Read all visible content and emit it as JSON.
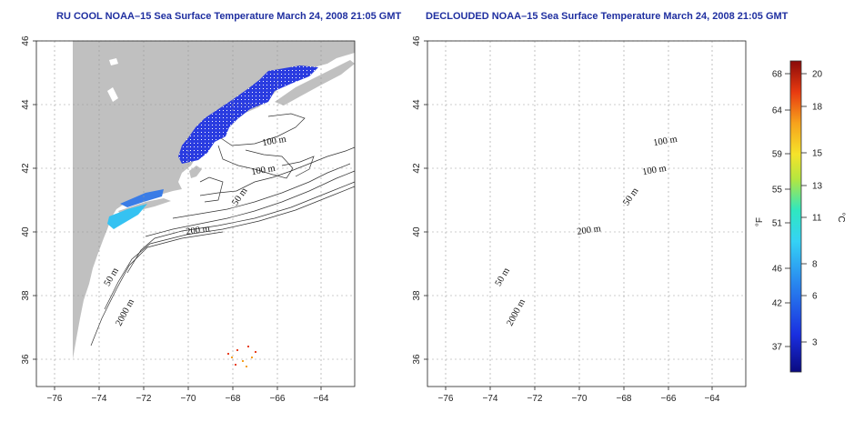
{
  "titles": {
    "left": "RU COOL NOAA–15 Sea Surface Temperature March 24, 2008 21:05 GMT",
    "right": "DECLOUDED NOAA–15 Sea Surface Temperature March 24, 2008 21:05 GMT"
  },
  "maps": [
    {
      "id": "ru-cool",
      "lon_ticks": [
        "−76",
        "−74",
        "−72",
        "−70",
        "−68",
        "−66",
        "−64"
      ],
      "lat_ticks": [
        "36",
        "38",
        "40",
        "42",
        "44",
        "46"
      ],
      "contour_labels": [
        "100 m",
        "100 m",
        "50 m",
        "200 m",
        "50 m",
        "2000 m"
      ]
    },
    {
      "id": "declouded",
      "lon_ticks": [
        "−76",
        "−74",
        "−72",
        "−70",
        "−68",
        "−66",
        "−64"
      ],
      "lat_ticks": [
        "36",
        "38",
        "40",
        "42",
        "44",
        "46"
      ],
      "contour_labels": [
        "100 m",
        "100 m",
        "50 m",
        "200 m",
        "50 m",
        "2000 m"
      ]
    }
  ],
  "colorbar": {
    "fahrenheit_label": "°F",
    "celsius_label": "°C",
    "fahrenheit_ticks": [
      "68",
      "64",
      "59",
      "55",
      "51",
      "46",
      "42",
      "37"
    ],
    "celsius_ticks": [
      "20",
      "18",
      "15",
      "13",
      "11",
      "8",
      "6",
      "3"
    ]
  },
  "colors": {
    "land": "#c0c0c0",
    "ocean": "#ffffff",
    "sst_cold": "#1a2fd6",
    "title": "#1f2fa0"
  }
}
